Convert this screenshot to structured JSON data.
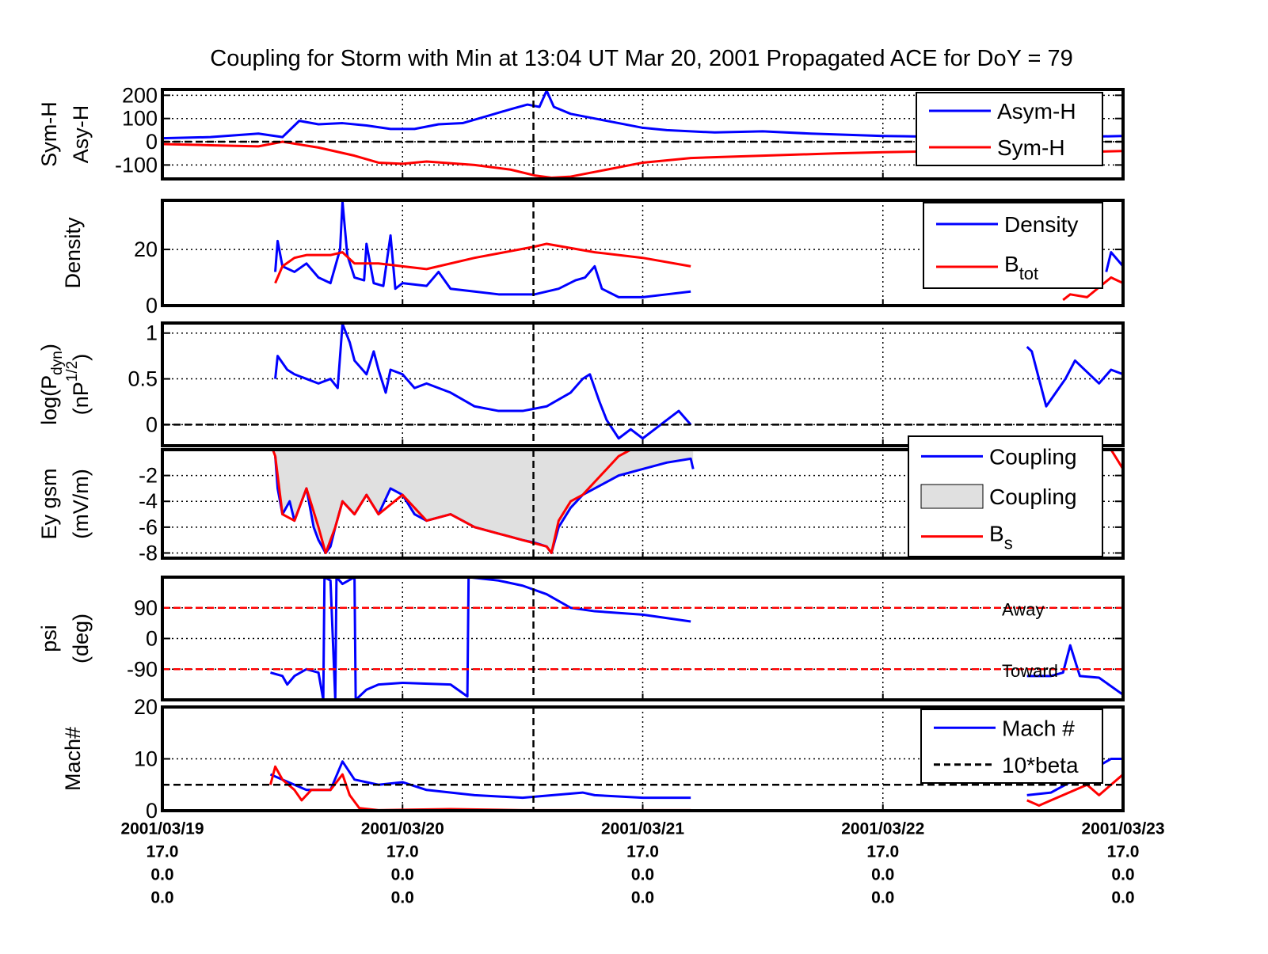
{
  "chart_data": [
    {
      "type": "line",
      "title": "Coupling for Storm with Min at 13:04 UT Mar 20, 2001  Propagated ACE for DoY = 79",
      "ylabel": [
        [
          {
            "text": "Sym-H"
          }
        ],
        [
          {
            "text": "Asy-H"
          }
        ]
      ],
      "xlim": [
        0,
        4
      ],
      "xticks": [
        0,
        1,
        2,
        3,
        4
      ],
      "ylim": [
        -160,
        225
      ],
      "yticks": [
        -100,
        0,
        100,
        200
      ],
      "grid": true,
      "hlines": [
        {
          "value": 0,
          "color": "#000000"
        }
      ],
      "vlines": [
        1.545
      ],
      "series": [
        {
          "name": "Asym-H",
          "color": "#0000ff",
          "style": "line",
          "x": [
            0,
            0.2,
            0.4,
            0.5,
            0.57,
            0.65,
            0.75,
            0.85,
            0.95,
            1.05,
            1.15,
            1.25,
            1.35,
            1.45,
            1.52,
            1.57,
            1.6,
            1.63,
            1.7,
            1.8,
            1.9,
            2.0,
            2.1,
            2.3,
            2.5,
            2.7,
            3.0,
            3.3,
            3.6,
            3.8,
            4.0
          ],
          "values": [
            15,
            20,
            35,
            20,
            90,
            75,
            80,
            70,
            55,
            55,
            75,
            80,
            110,
            140,
            160,
            150,
            220,
            150,
            120,
            100,
            80,
            60,
            50,
            40,
            45,
            35,
            25,
            20,
            20,
            20,
            25
          ]
        },
        {
          "name": "Sym-H",
          "color": "#ff0000",
          "style": "line",
          "x": [
            0,
            0.2,
            0.4,
            0.5,
            0.65,
            0.8,
            0.9,
            1.0,
            1.1,
            1.3,
            1.45,
            1.55,
            1.62,
            1.7,
            1.8,
            1.9,
            2.0,
            2.2,
            2.5,
            2.8,
            3.0,
            3.3,
            3.6,
            3.8,
            4.0
          ],
          "values": [
            -10,
            -15,
            -20,
            0,
            -25,
            -60,
            -90,
            -95,
            -85,
            -100,
            -120,
            -145,
            -155,
            -150,
            -130,
            -110,
            -90,
            -70,
            -60,
            -50,
            -45,
            -40,
            -40,
            -45,
            -40
          ]
        }
      ]
    },
    {
      "type": "line",
      "ylabel": [
        [
          {
            "text": "Density"
          }
        ]
      ],
      "xlim": [
        0,
        4
      ],
      "xticks": [
        0,
        1,
        2,
        3,
        4
      ],
      "ylim": [
        0,
        37.5
      ],
      "yticks": [
        0,
        20
      ],
      "grid": true,
      "vlines": [
        1.545
      ],
      "series": [
        {
          "name": "Density",
          "color": "#0000ff",
          "style": "line",
          "x": [
            0.47,
            0.48,
            0.5,
            0.55,
            0.6,
            0.65,
            0.7,
            0.74,
            0.75,
            0.77,
            0.8,
            0.84,
            0.85,
            0.88,
            0.92,
            0.95,
            0.97,
            1.0,
            1.1,
            1.15,
            1.2,
            1.3,
            1.4,
            1.55,
            1.65,
            1.72,
            1.76,
            1.8,
            1.83,
            1.9,
            2.0,
            2.1,
            2.2,
            3.0,
            3.93,
            3.95,
            4.0
          ],
          "values": [
            12,
            23,
            14,
            12,
            15,
            10,
            8,
            20,
            37,
            18,
            10,
            9,
            22,
            8,
            7,
            25,
            6,
            8,
            7,
            12,
            6,
            5,
            4,
            4,
            6,
            9,
            10,
            14,
            6,
            3,
            3,
            4,
            5,
            null,
            12,
            19,
            14
          ]
        },
        {
          "name": "B",
          "name_sub": "tot",
          "color": "#ff0000",
          "style": "line",
          "x": [
            0.47,
            0.5,
            0.55,
            0.6,
            0.7,
            0.75,
            0.8,
            0.9,
            1.0,
            1.1,
            1.3,
            1.55,
            1.6,
            1.8,
            2.0,
            2.2,
            3.0,
            3.75,
            3.78,
            3.85,
            3.95,
            4.0
          ],
          "values": [
            8,
            14,
            17,
            18,
            18,
            19,
            15,
            15,
            14,
            13,
            17,
            21,
            22,
            19,
            17,
            14,
            null,
            2,
            4,
            3,
            10,
            8
          ]
        }
      ]
    },
    {
      "type": "line",
      "ylabel": [
        [
          {
            "text": "log(P"
          },
          {
            "text": "dyn",
            "shift": "sub"
          },
          {
            "text": ")"
          }
        ],
        [
          {
            "text": "(nP"
          },
          {
            "text": "1/2",
            "shift": "super"
          },
          {
            "text": ")"
          }
        ]
      ],
      "xlim": [
        0,
        4
      ],
      "xticks": [
        0,
        1,
        2,
        3,
        4
      ],
      "ylim": [
        -0.23,
        1.11
      ],
      "yticks": [
        0,
        0.5,
        1
      ],
      "grid": true,
      "hlines": [
        {
          "value": 0,
          "color": "#000000"
        }
      ],
      "vlines": [
        1.545
      ],
      "series": [
        {
          "color": "#0000ff",
          "style": "line",
          "x": [
            0.47,
            0.48,
            0.52,
            0.55,
            0.6,
            0.65,
            0.7,
            0.73,
            0.75,
            0.78,
            0.8,
            0.85,
            0.88,
            0.9,
            0.93,
            0.95,
            1.0,
            1.05,
            1.1,
            1.2,
            1.3,
            1.4,
            1.5,
            1.6,
            1.7,
            1.75,
            1.78,
            1.82,
            1.85,
            1.9,
            1.95,
            2.0,
            2.05,
            2.1,
            2.15,
            2.2,
            3.0,
            3.6,
            3.62,
            3.65,
            3.68,
            3.72,
            3.76,
            3.8,
            3.9,
            3.95,
            4.0
          ],
          "values": [
            0.5,
            0.75,
            0.6,
            0.55,
            0.5,
            0.45,
            0.5,
            0.4,
            1.1,
            0.9,
            0.7,
            0.55,
            0.8,
            0.6,
            0.35,
            0.6,
            0.55,
            0.4,
            0.45,
            0.35,
            0.2,
            0.15,
            0.15,
            0.2,
            0.35,
            0.5,
            0.55,
            0.25,
            0.05,
            -0.15,
            -0.05,
            -0.15,
            -0.05,
            0.05,
            0.15,
            0.0,
            null,
            0.85,
            0.8,
            0.5,
            0.2,
            0.35,
            0.5,
            0.7,
            0.45,
            0.6,
            0.55
          ]
        }
      ]
    },
    {
      "type": "line",
      "ylabel": [
        [
          {
            "text": "Ey gsm"
          }
        ],
        [
          {
            "text": "(mV/m)"
          }
        ]
      ],
      "xlim": [
        0,
        4
      ],
      "xticks": [
        0,
        1,
        2,
        3,
        4
      ],
      "ylim": [
        -8.4,
        0
      ],
      "yticks": [
        -8,
        -6,
        -4,
        -2
      ],
      "grid": true,
      "vlines": [
        1.545
      ],
      "series": [
        {
          "name": "Coupling",
          "color": "#0000ff",
          "style": "line",
          "x": [
            0.47,
            0.48,
            0.5,
            0.53,
            0.55,
            0.6,
            0.63,
            0.65,
            0.68,
            0.7,
            0.72,
            0.75,
            0.8,
            0.85,
            0.9,
            0.95,
            1.0,
            1.05,
            1.1,
            1.2,
            1.3,
            1.4,
            1.5,
            1.55,
            1.6,
            1.62,
            1.65,
            1.7,
            1.75,
            1.8,
            1.85,
            1.9,
            2.0,
            2.1,
            2.2,
            2.21
          ],
          "values": [
            -0.5,
            -3,
            -5,
            -4,
            -5.5,
            -3,
            -6,
            -7,
            -8,
            -7.5,
            -6,
            -4,
            -5,
            -3.5,
            -5,
            -3,
            -3.5,
            -5,
            -5.5,
            -5,
            -6,
            -6.5,
            -7,
            -7.2,
            -7.5,
            -8,
            -6,
            -4.5,
            -3.5,
            -3,
            -2.5,
            -2,
            -1.5,
            -1,
            -0.7,
            -1.5
          ]
        },
        {
          "name": "Coupling",
          "color": "#e0e0e0",
          "style": "area",
          "x": [
            0.47,
            0.48,
            0.5,
            0.53,
            0.55,
            0.6,
            0.63,
            0.65,
            0.68,
            0.7,
            0.72,
            0.75,
            0.8,
            0.85,
            0.9,
            0.95,
            1.0,
            1.05,
            1.1,
            1.2,
            1.3,
            1.4,
            1.5,
            1.55,
            1.6,
            1.62,
            1.65,
            1.7,
            1.75,
            1.8,
            1.85,
            1.9,
            2.0,
            2.1,
            2.2,
            2.21
          ],
          "values": [
            -0.5,
            -3,
            -5,
            -4,
            -5.5,
            -3,
            -6,
            -7,
            -8,
            -7.5,
            -6,
            -4,
            -5,
            -3.5,
            -5,
            -3,
            -3.5,
            -5,
            -5.5,
            -5,
            -6,
            -6.5,
            -7,
            -7.2,
            -7.5,
            -8,
            -6,
            -4.5,
            -3.5,
            -3,
            -2.5,
            -2,
            -1.5,
            -1,
            -0.7,
            -1.5
          ]
        },
        {
          "name": "B",
          "name_sub": "s",
          "color": "#ff0000",
          "style": "line",
          "x": [
            0,
            0.46,
            0.47,
            0.5,
            0.55,
            0.6,
            0.65,
            0.68,
            0.72,
            0.75,
            0.8,
            0.85,
            0.9,
            1.0,
            1.1,
            1.2,
            1.3,
            1.4,
            1.5,
            1.6,
            1.62,
            1.65,
            1.7,
            1.75,
            1.8,
            1.85,
            1.9,
            1.95,
            2.0,
            2.2,
            3.95,
            4.0
          ],
          "values": [
            0,
            0,
            -0.5,
            -5,
            -5.5,
            -3,
            -6,
            -8,
            -6,
            -4,
            -5,
            -3.5,
            -5,
            -3.5,
            -5.5,
            -5,
            -6,
            -6.5,
            -7,
            -7.5,
            -8,
            -5.5,
            -4,
            -3.5,
            -2.5,
            -1.5,
            -0.5,
            0,
            0,
            0,
            0,
            -1.5
          ]
        }
      ]
    },
    {
      "type": "line",
      "ylabel": [
        [
          {
            "text": "psi"
          }
        ],
        [
          {
            "text": "(deg)"
          }
        ]
      ],
      "xlim": [
        0,
        4
      ],
      "xticks": [
        0,
        1,
        2,
        3,
        4
      ],
      "ylim": [
        -180,
        180
      ],
      "yticks": [
        -90,
        0,
        90
      ],
      "grid": true,
      "hlines": [
        {
          "value": 90,
          "color": "#ff0000",
          "label": "Away"
        },
        {
          "value": -90,
          "color": "#ff0000",
          "label": "Toward"
        }
      ],
      "vlines": [
        1.545
      ],
      "series": [
        {
          "color": "#0000ff",
          "style": "line",
          "x": [
            0.45,
            0.5,
            0.52,
            0.55,
            0.6,
            0.65,
            0.67,
            0.675,
            0.7,
            0.72,
            0.725,
            0.75,
            0.8,
            0.805,
            0.85,
            0.9,
            1.0,
            1.2,
            1.25,
            1.27,
            1.275,
            1.4,
            1.5,
            1.6,
            1.7,
            1.8,
            2.0,
            2.2,
            3.0,
            3.6,
            3.7,
            3.75,
            3.78,
            3.82,
            3.9,
            4.0
          ],
          "values": [
            -100,
            -110,
            -135,
            -110,
            -90,
            -100,
            -180,
            180,
            170,
            -180,
            180,
            160,
            180,
            -180,
            -150,
            -135,
            -130,
            -135,
            -160,
            -170,
            180,
            170,
            155,
            130,
            90,
            80,
            70,
            50,
            null,
            -110,
            -110,
            -100,
            -20,
            -110,
            -115,
            -165
          ]
        }
      ]
    },
    {
      "type": "line",
      "ylabel": [
        [
          {
            "text": "Mach#"
          }
        ]
      ],
      "xlim": [
        0,
        4
      ],
      "xticks": [
        {
          "value": 0,
          "label": "2001/03/19",
          "sublabels": [
            "17.0",
            "0.0",
            "0.0"
          ]
        },
        {
          "value": 1,
          "label": "2001/03/20",
          "sublabels": [
            "17.0",
            "0.0",
            "0.0"
          ]
        },
        {
          "value": 2,
          "label": "2001/03/21",
          "sublabels": [
            "17.0",
            "0.0",
            "0.0"
          ]
        },
        {
          "value": 3,
          "label": "2001/03/22",
          "sublabels": [
            "17.0",
            "0.0",
            "0.0"
          ]
        },
        {
          "value": 4,
          "label": "2001/03/23",
          "sublabels": [
            "17.0",
            "0.0",
            "0.0"
          ]
        }
      ],
      "ylim": [
        0,
        20
      ],
      "yticks": [
        0,
        10,
        20
      ],
      "grid": true,
      "hlines": [
        {
          "value": 5,
          "color": "#000000"
        }
      ],
      "vlines": [
        1.545
      ],
      "series": [
        {
          "name": "Mach #",
          "color": "#0000ff",
          "style": "line",
          "x": [
            0.45,
            0.5,
            0.6,
            0.7,
            0.75,
            0.8,
            0.9,
            1.0,
            1.1,
            1.3,
            1.5,
            1.75,
            1.8,
            2.0,
            2.2,
            3.0,
            3.6,
            3.7,
            3.8,
            3.95,
            4.0
          ],
          "values": [
            7,
            6,
            4,
            4,
            9.5,
            6,
            5,
            5.5,
            4,
            3,
            2.5,
            3.5,
            3,
            2.5,
            2.5,
            null,
            3,
            3.5,
            6,
            10,
            10
          ]
        },
        {
          "name": "10*beta",
          "color": "#ff0000",
          "legend_color": "#000000",
          "legend_dash": true,
          "style": "line",
          "x": [
            0.45,
            0.47,
            0.5,
            0.55,
            0.58,
            0.62,
            0.7,
            0.75,
            0.78,
            0.82,
            0.9,
            1.2,
            1.5,
            2.2,
            3.0,
            3.6,
            3.65,
            3.7,
            3.85,
            3.9,
            4.0
          ],
          "values": [
            5,
            8.5,
            6,
            4,
            2,
            4,
            4,
            7,
            3,
            0.5,
            0.1,
            0.3,
            0.1,
            0.1,
            null,
            2,
            1,
            2,
            5,
            3,
            7
          ]
        }
      ]
    }
  ]
}
